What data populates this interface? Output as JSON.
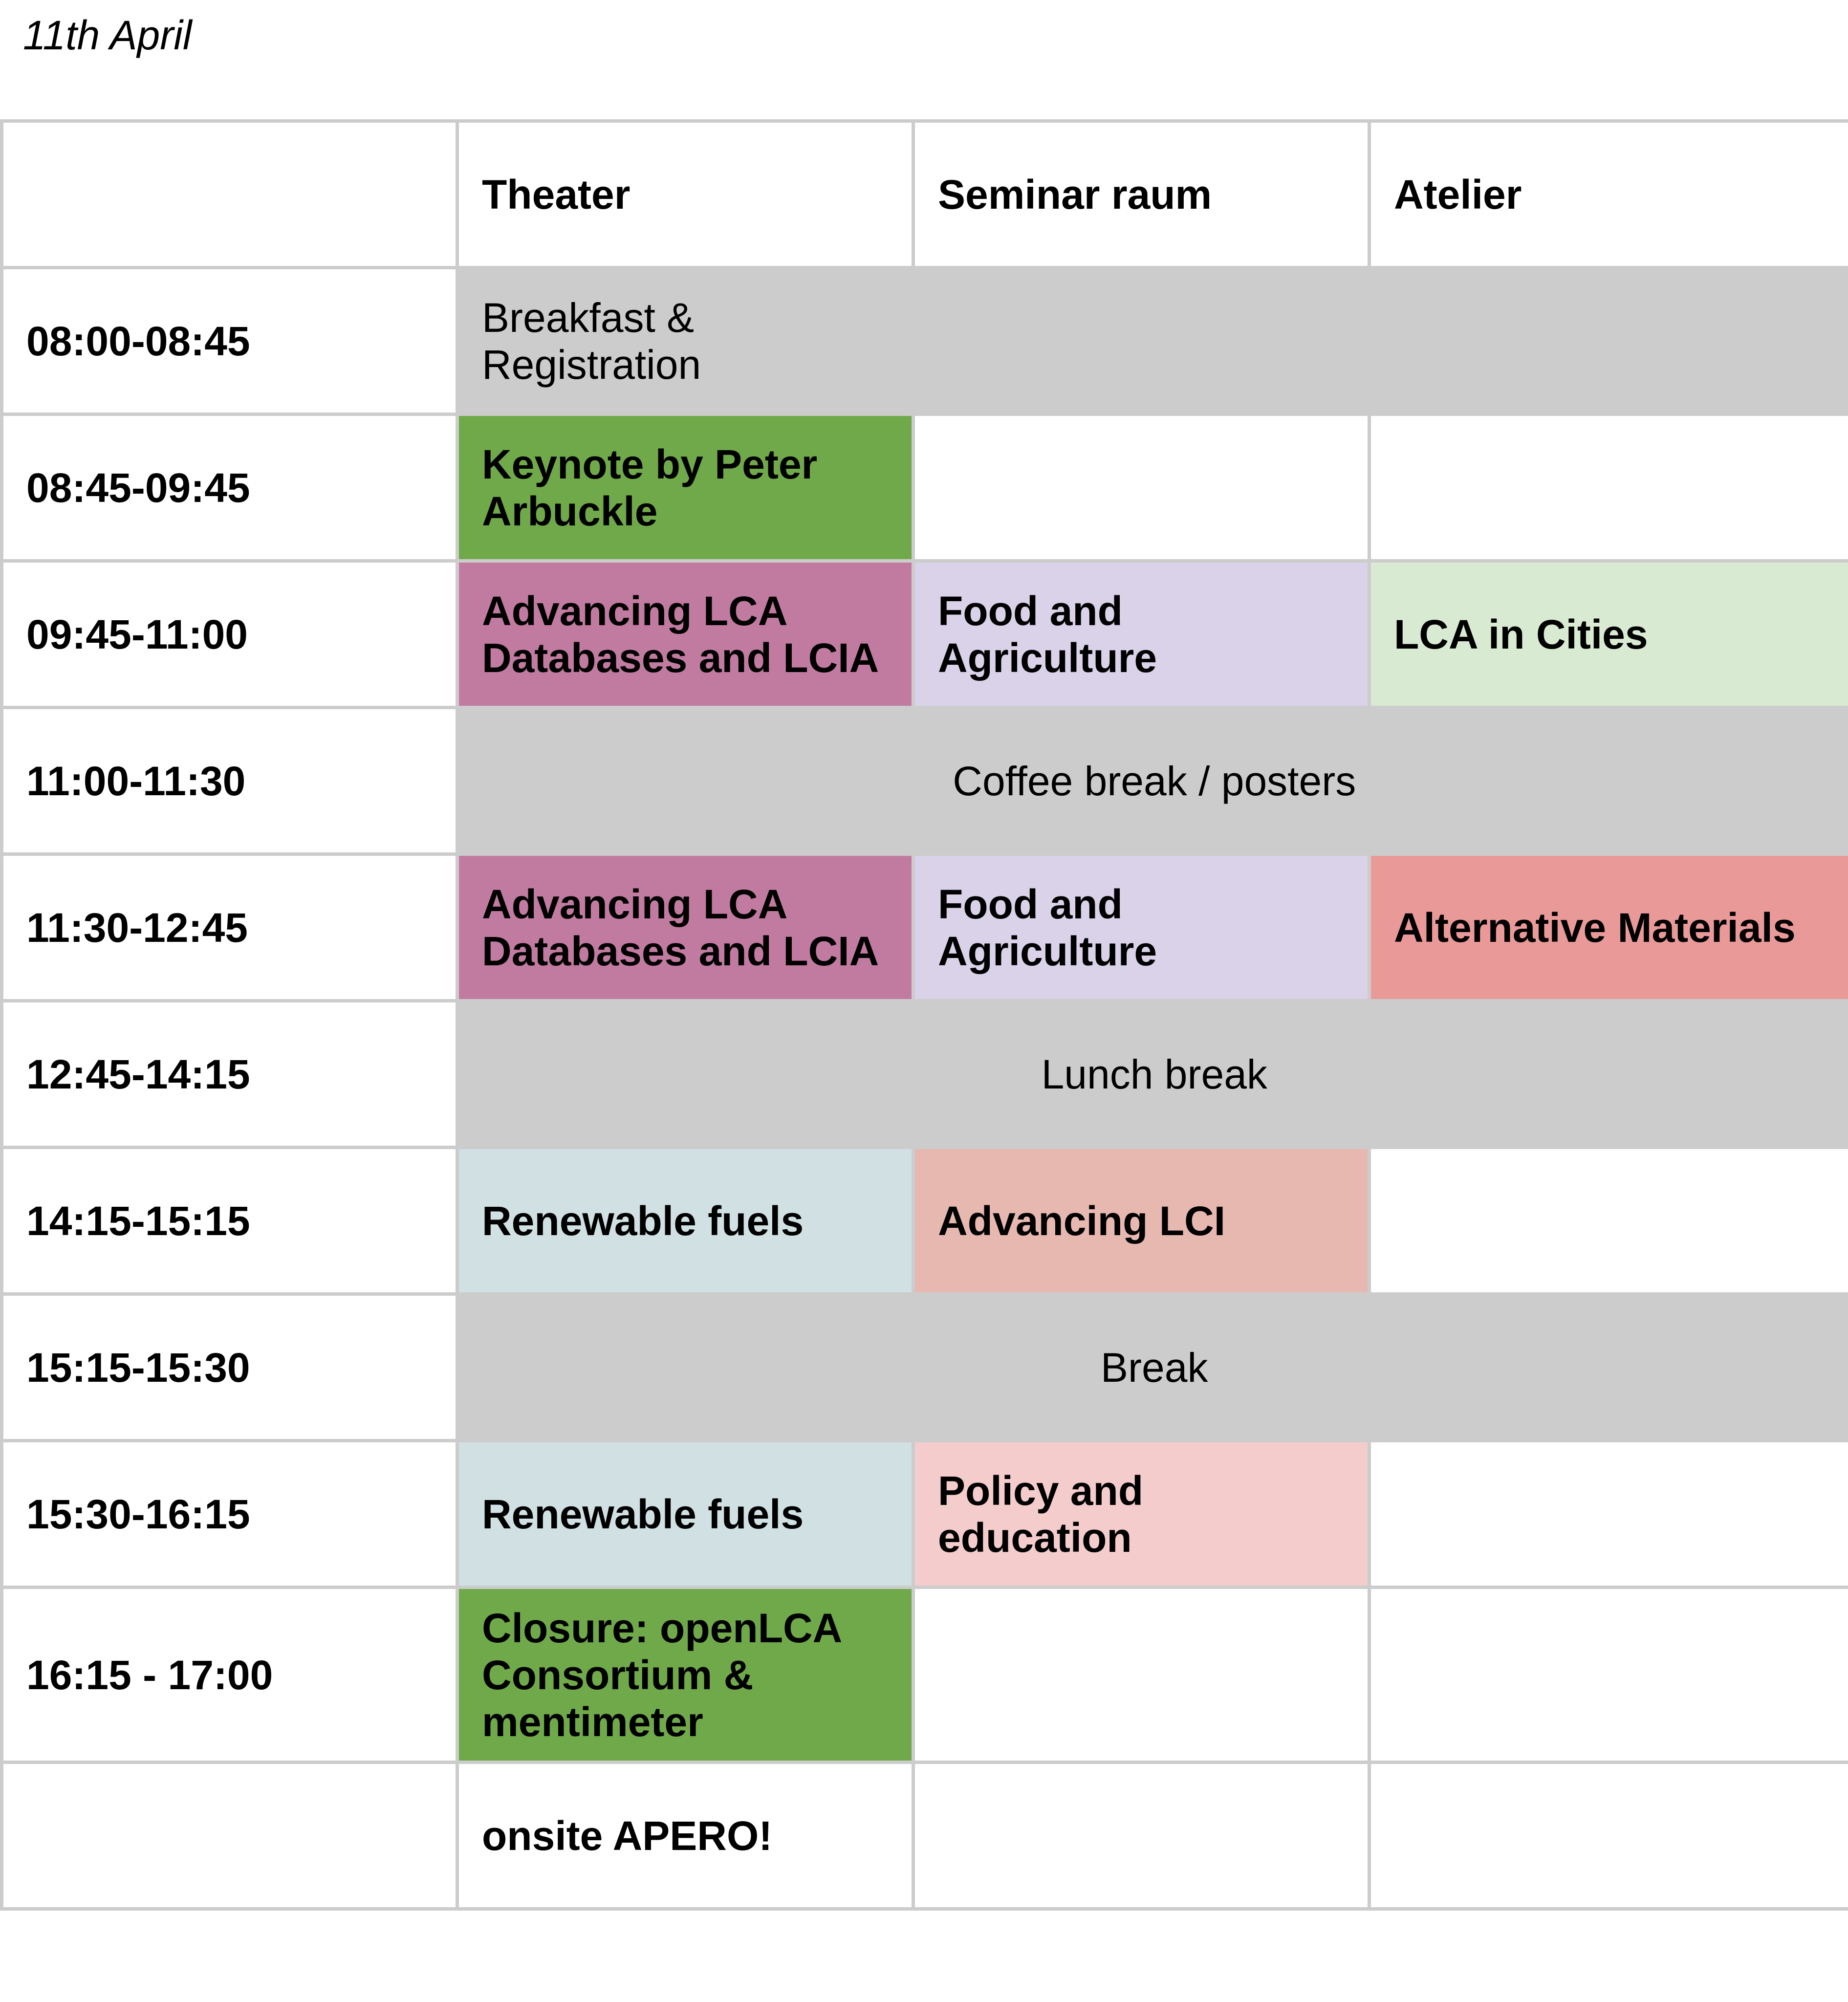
{
  "date": "11th April",
  "header": {
    "rooms": [
      "Theater",
      "Seminar raum",
      "Atelier"
    ]
  },
  "rows": [
    {
      "time": "08:00-08:45",
      "cells": [
        "Breakfast & Registration"
      ]
    },
    {
      "time": "08:45-09:45",
      "cells": [
        "Keynote by Peter Arbuckle",
        "",
        ""
      ]
    },
    {
      "time": "09:45-11:00",
      "cells": [
        "Advancing LCA Databases and LCIA",
        "Food and Agriculture",
        "LCA in Cities"
      ]
    },
    {
      "time": "11:00-11:30",
      "cells": [
        "Coffee break / posters"
      ]
    },
    {
      "time": "11:30-12:45",
      "cells": [
        "Advancing LCA Databases and LCIA",
        "Food and Agriculture",
        "Alternative Materials"
      ]
    },
    {
      "time": "12:45-14:15",
      "cells": [
        "Lunch break"
      ]
    },
    {
      "time": "14:15-15:15",
      "cells": [
        "Renewable fuels",
        "Advancing LCI",
        ""
      ]
    },
    {
      "time": "15:15-15:30",
      "cells": [
        "Break"
      ]
    },
    {
      "time": "15:30-16:15",
      "cells": [
        "Renewable fuels",
        "Policy and education",
        ""
      ]
    },
    {
      "time": "16:15 - 17:00",
      "cells": [
        "Closure: openLCA Consortium & mentimeter",
        "",
        ""
      ]
    },
    {
      "time": "",
      "cells": [
        "onsite APERO!",
        "",
        ""
      ]
    }
  ],
  "colors": {
    "grid": "#cccccc",
    "break": "#cccccc",
    "plenary": "#70a94a",
    "databases": "#c27ba0",
    "food": "#d9d2e9",
    "cities": "#d9ead3",
    "materials": "#ea9999",
    "fuels": "#d0e0e3",
    "lci": "#e6b8af",
    "policy": "#f4cccc"
  }
}
